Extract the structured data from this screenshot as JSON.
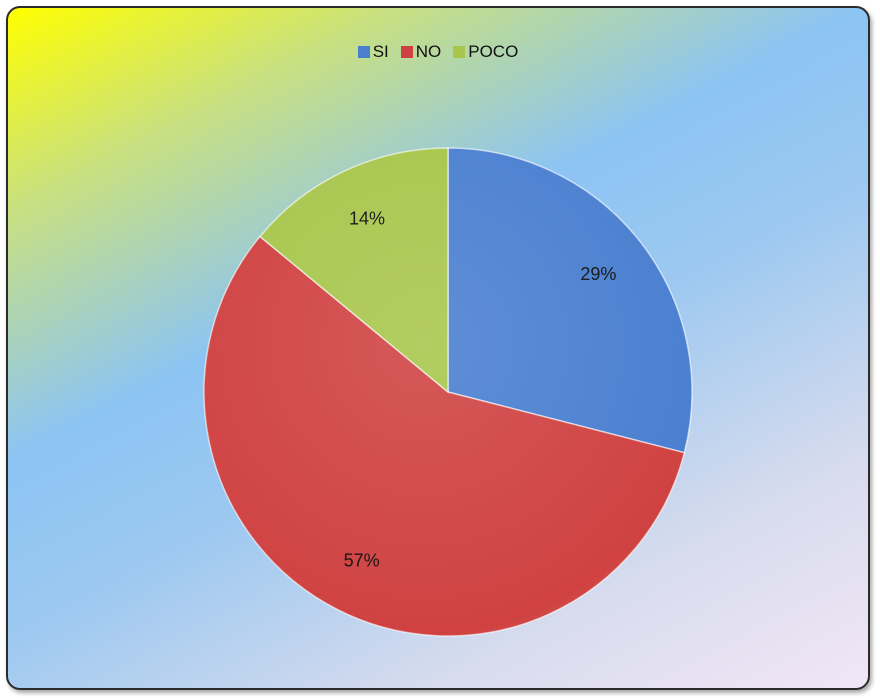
{
  "chart_data": {
    "type": "pie",
    "categories": [
      "SI",
      "NO",
      "POCO"
    ],
    "values": [
      29,
      57,
      14
    ],
    "value_labels": [
      "29%",
      "57%",
      "14%"
    ],
    "colors": [
      "#4a7fd0",
      "#d04242",
      "#a8c64c"
    ],
    "legend": "top"
  }
}
